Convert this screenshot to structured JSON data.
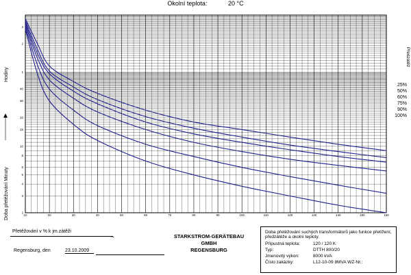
{
  "header": {
    "ambient_label": "Okolní teplota:",
    "ambient_value": "20 °C"
  },
  "axes": {
    "y_upper_label": "Hodiny",
    "y_lower_label": "Doba přetěžování  Minuty",
    "x_label": "Přetěžování v % k jm.zátěži",
    "legend_title": "Předzátěž"
  },
  "chart_data": {
    "type": "line",
    "title": "",
    "xlabel": "Přetěžování v % k jm.zátěži",
    "ylabel": "Doba přetěžování",
    "x_ticks": [
      "10",
      "20",
      "30",
      "40",
      "50",
      "60",
      "70",
      "80",
      "90",
      "100",
      "110",
      "120",
      "130",
      "140",
      "150",
      "160"
    ],
    "xlim": [
      10,
      160
    ],
    "y_scale": "log",
    "y_ticks_hours": [
      "3",
      "2",
      "1"
    ],
    "y_ticks_minutes": [
      "40",
      "30",
      "20",
      "15",
      "10",
      "8",
      "6",
      "5",
      "4",
      "3",
      "2"
    ],
    "legend": [
      "25%",
      "50%",
      "60%",
      "75%",
      "90%",
      "100%"
    ],
    "series": [
      {
        "name": "25%",
        "x": [
          10,
          15,
          20,
          30,
          40,
          60,
          80,
          100,
          120,
          140,
          160
        ],
        "y": [
          220,
          120,
          70,
          48,
          36,
          24,
          18,
          15,
          12.5,
          10.5,
          9
        ]
      },
      {
        "name": "50%",
        "x": [
          10,
          15,
          20,
          30,
          40,
          60,
          80,
          100,
          120,
          140,
          160
        ],
        "y": [
          210,
          105,
          62,
          42,
          31,
          20.5,
          15.5,
          12.5,
          10.3,
          8.8,
          7.6
        ]
      },
      {
        "name": "60%",
        "x": [
          10,
          15,
          20,
          30,
          40,
          60,
          80,
          100,
          120,
          140,
          160
        ],
        "y": [
          200,
          95,
          58,
          38,
          28,
          18,
          13.5,
          11,
          9.2,
          7.8,
          6.8
        ]
      },
      {
        "name": "75%",
        "x": [
          10,
          15,
          20,
          30,
          40,
          60,
          80,
          100,
          120,
          140,
          160
        ],
        "y": [
          190,
          85,
          50,
          32,
          23,
          15,
          11,
          8.8,
          7.3,
          6.3,
          5.5
        ]
      },
      {
        "name": "90%",
        "x": [
          10,
          15,
          20,
          30,
          40,
          60,
          80,
          100,
          120,
          140,
          160
        ],
        "y": [
          180,
          72,
          40,
          24,
          16.5,
          10.5,
          7.8,
          6,
          4.8,
          3.9,
          3.2
        ]
      },
      {
        "name": "100%",
        "x": [
          10,
          15,
          20,
          30,
          40,
          60,
          80,
          100,
          120,
          140,
          160
        ],
        "y": [
          170,
          58,
          30,
          17,
          11.5,
          7,
          5,
          3.8,
          3.0,
          2.4,
          2.0
        ]
      }
    ]
  },
  "footer": {
    "company": [
      "STARKSTROM-GERÄTEBAU",
      "GMBH",
      "REGENSBURG"
    ],
    "place_label": "Regensburg, den",
    "date": "23.10.2009"
  },
  "info": {
    "description": "Doba přetěžování suchých transformátorů jako funkce přetížení, předzátěže a okolní teploty.",
    "rows": [
      {
        "label": "Přípustná teplota:",
        "value": "120 / 120 K"
      },
      {
        "label": "Typ:",
        "value": "DTTH 800/20"
      },
      {
        "label": "Jmenovitý výkon:",
        "value": "8000 kVA"
      },
      {
        "label": "Číslo zakázky:",
        "value": "L12-10-09 8MVA WZ-Nr.:"
      }
    ]
  },
  "colors": {
    "curve": "#1f1f8f",
    "grid": "#000000"
  }
}
